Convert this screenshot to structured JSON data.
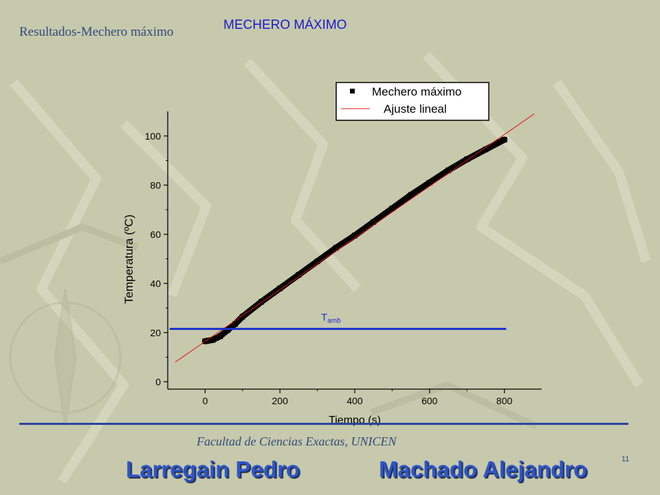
{
  "slide": {
    "section_title": "Resultados-Mechero máximo",
    "title": "MECHERO MÁXIMO",
    "footer_institution": "Facultad de Ciencias Exactas, UNICEN",
    "author_1": "Larregain Pedro",
    "author_2": "Machado Alejandro",
    "slide_number": "11"
  },
  "colors": {
    "background": "#c7c9ad",
    "title_blue": "#1a1acc",
    "section_blue": "#2e4b7a",
    "author_blue": "#2d55c8",
    "footer_line": "#2a46a0",
    "data_series": "#000000",
    "fit_line": "#e01010",
    "tamb_line": "#1a2fcc"
  },
  "chart_data": {
    "type": "scatter",
    "xlabel": "Tiempo (s)",
    "ylabel": "Temperatura (ºC)",
    "xlim": [
      -100,
      900
    ],
    "ylim": [
      -3,
      110
    ],
    "x_ticks": [
      "0",
      "200",
      "400",
      "600",
      "800"
    ],
    "x_tick_values": [
      0,
      200,
      400,
      600,
      800
    ],
    "y_ticks": [
      "0",
      "20",
      "40",
      "60",
      "80",
      "100"
    ],
    "y_tick_values": [
      0,
      20,
      40,
      60,
      80,
      100
    ],
    "grid": false,
    "legend_placement": "top-right",
    "series": [
      {
        "name": "Mechero máximo",
        "style": "markers",
        "color": "#000000",
        "x": [
          0,
          20,
          40,
          60,
          80,
          100,
          150,
          200,
          250,
          300,
          350,
          400,
          450,
          500,
          550,
          600,
          650,
          700,
          750,
          800
        ],
        "y": [
          16.5,
          17,
          18.5,
          21,
          23.5,
          26.5,
          32.5,
          38,
          43.5,
          49,
          54.5,
          59.5,
          65,
          70.5,
          76,
          81,
          86,
          90.5,
          94.5,
          98.5
        ]
      },
      {
        "name": "Ajuste lineal",
        "style": "line",
        "color": "#e01010",
        "x": [
          -80,
          880
        ],
        "y": [
          8,
          109
        ]
      }
    ],
    "annotations": [
      {
        "label_main": "T",
        "label_sub": "amb",
        "type": "hline",
        "y": 21.5,
        "x_range": [
          -95,
          805
        ],
        "color": "#1a2fcc"
      }
    ]
  }
}
